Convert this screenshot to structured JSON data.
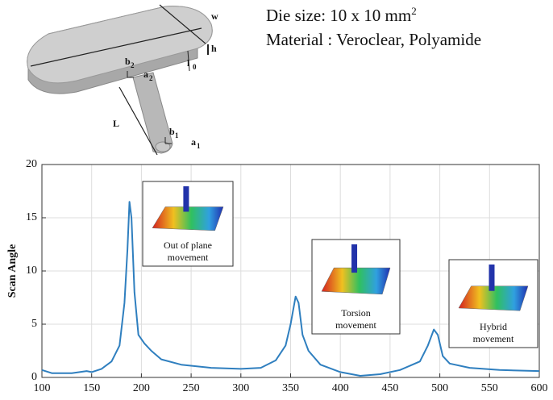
{
  "header": {
    "die_size": "Die size: 10 x 10 mm",
    "die_size_sup": "2",
    "material": "Material : Veroclear, Polyamide"
  },
  "diagram": {
    "labels": [
      {
        "text": "w"
      },
      {
        "text": "h"
      },
      {
        "text": "l",
        "sub": "0"
      },
      {
        "text": "b",
        "sub": "2"
      },
      {
        "text": "a",
        "sub": "2"
      },
      {
        "text": "L"
      },
      {
        "text": "b",
        "sub": "1"
      },
      {
        "text": "a",
        "sub": "1"
      }
    ]
  },
  "chart_data": {
    "type": "line",
    "y_label": "Scan Angle",
    "x": [
      100,
      110,
      130,
      145,
      150,
      160,
      170,
      178,
      183,
      186,
      188,
      190,
      193,
      197,
      203,
      210,
      220,
      240,
      270,
      300,
      320,
      335,
      345,
      350,
      355,
      358,
      362,
      368,
      380,
      400,
      420,
      440,
      460,
      480,
      488,
      494,
      498,
      503,
      510,
      530,
      560,
      600
    ],
    "series": [
      {
        "name": "Scan Angle",
        "color": "#2f7fbf",
        "values": [
          0.7,
          0.4,
          0.4,
          0.6,
          0.5,
          0.8,
          1.5,
          3,
          7,
          12,
          16.5,
          15,
          8,
          4,
          3.2,
          2.5,
          1.7,
          1.2,
          0.9,
          0.8,
          0.9,
          1.6,
          3,
          5,
          7.6,
          7,
          4,
          2.5,
          1.2,
          0.5,
          0.15,
          0.3,
          0.7,
          1.5,
          3,
          4.5,
          4,
          2,
          1.3,
          0.9,
          0.7,
          0.6
        ]
      }
    ],
    "xlim": [
      100,
      600
    ],
    "xticks": [
      100,
      150,
      200,
      250,
      300,
      350,
      400,
      450,
      500,
      550,
      600
    ],
    "ylim": [
      0,
      20
    ],
    "yticks": [
      0,
      5,
      10,
      15,
      20
    ],
    "grid": true,
    "annotations": [
      [
        "Out of plane",
        "movement"
      ],
      [
        "Torsion",
        "movement"
      ],
      [
        "Hybrid",
        "movement"
      ]
    ]
  }
}
